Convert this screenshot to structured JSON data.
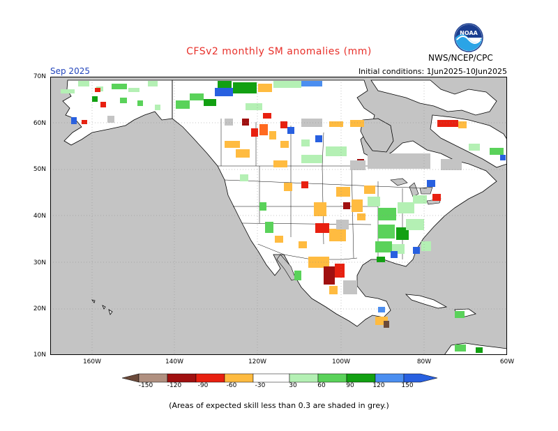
{
  "title": "CFSv2 monthly SM anomalies (mm)",
  "valid_month": "Sep 2025",
  "initial_conditions": "Initial conditions: 1Jun2025-10Jun2025",
  "agency": "NWS/NCEP/CPC",
  "logo_text": "NOAA",
  "latitude_labels": [
    "70N",
    "60N",
    "50N",
    "40N",
    "30N",
    "20N",
    "10N"
  ],
  "longitude_labels": [
    "160W",
    "140W",
    "120W",
    "100W",
    "80W",
    "60W"
  ],
  "colorbar": {
    "labels": [
      "-150",
      "-120",
      "-90",
      "-60",
      "-30",
      "30",
      "60",
      "90",
      "120",
      "150"
    ],
    "colors": [
      "#6b4a3a",
      "#b09080",
      "#a01010",
      "#e82010",
      "#ff6a20",
      "#ffbb40",
      "#ffffff",
      "#b4f0b4",
      "#5ad25a",
      "#12a012",
      "#4b8ef0",
      "#2860e0"
    ]
  },
  "footnote": "(Areas of expected skill less than 0.3 are shaded in grey.)",
  "palette": {
    "ocean": "#c4c4c4",
    "land": "#ffffff",
    "low_skill": "#c4c4c4",
    "title_red": "#e8302a"
  }
}
